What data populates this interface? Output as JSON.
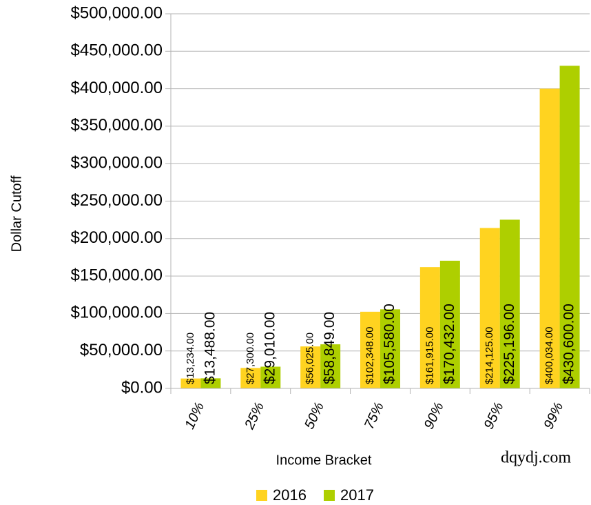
{
  "chart_data": {
    "type": "bar",
    "x_label": "Income Bracket",
    "y_label": "Dollar Cutoff",
    "source": "dqydj.com",
    "categories": [
      "10%",
      "25%",
      "50%",
      "75%",
      "90%",
      "95%",
      "99%"
    ],
    "series": [
      {
        "name": "2016",
        "color": "#ffd320",
        "values": [
          13234,
          27300,
          56025,
          102348,
          161915,
          214125,
          400034
        ],
        "value_labels": [
          "$13,234.00",
          "$27,300.00",
          "$56,025.00",
          "$102,348.00",
          "$161,915.00",
          "$214,125.00",
          "$400,034.00"
        ]
      },
      {
        "name": "2017",
        "color": "#aecf00",
        "values": [
          13488,
          29010,
          58849,
          105580,
          170432,
          225196,
          430600
        ],
        "value_labels": [
          "$13,488.00",
          "$29,010.00",
          "$58,849.00",
          "$105,580.00",
          "$170,432.00",
          "$225,196.00",
          "$430,600.00"
        ]
      }
    ],
    "ylim": [
      0,
      500000
    ],
    "yticks": [
      {
        "value": 0,
        "label": "$0.00"
      },
      {
        "value": 50000,
        "label": "$50,000.00"
      },
      {
        "value": 100000,
        "label": "$100,000.00"
      },
      {
        "value": 150000,
        "label": "$150,000.00"
      },
      {
        "value": 200000,
        "label": "$200,000.00"
      },
      {
        "value": 250000,
        "label": "$250,000.00"
      },
      {
        "value": 300000,
        "label": "$300,000.00"
      },
      {
        "value": 350000,
        "label": "$350,000.00"
      },
      {
        "value": 400000,
        "label": "$400,000.00"
      },
      {
        "value": 450000,
        "label": "$450,000.00"
      },
      {
        "value": 500000,
        "label": "$500,000.00"
      }
    ],
    "grid": true,
    "legend": "bottom"
  }
}
